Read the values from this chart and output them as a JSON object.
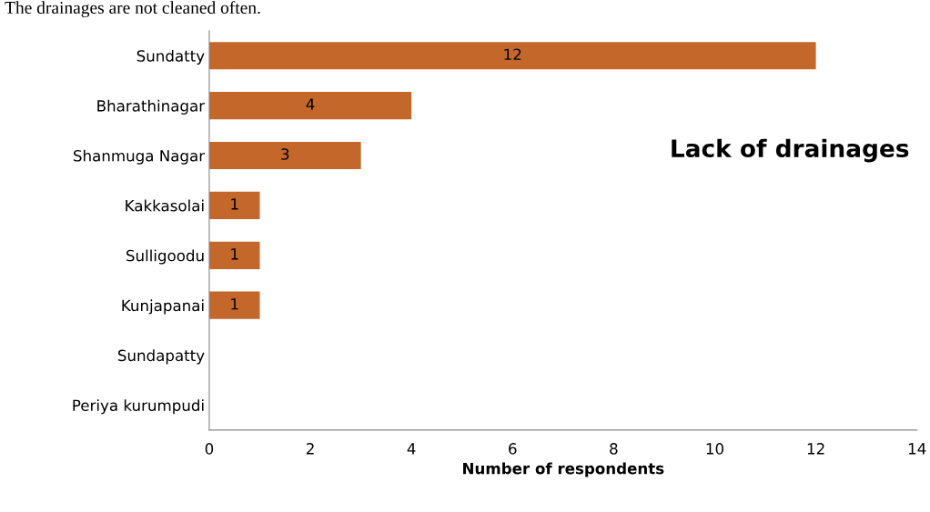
{
  "chart_data": {
    "type": "bar",
    "orientation": "horizontal",
    "title": "Lack of drainages",
    "xlabel": "Number of respondents",
    "categories": [
      "Sundatty",
      "Bharathinagar",
      "Shanmuga Nagar",
      "Kakkasolai",
      "Sulligoodu",
      "Kunjapanai",
      "Sundapatty",
      "Periya kurumpudi"
    ],
    "values": [
      12,
      4,
      3,
      1,
      1,
      1,
      null,
      null
    ],
    "color": "#c4672a",
    "xlim": [
      0,
      14
    ],
    "xticks": [
      0,
      2,
      4,
      6,
      8,
      10,
      12,
      14
    ],
    "data_labels": true,
    "grid": false,
    "annotations": [
      "The drainages are not cleaned often."
    ]
  }
}
